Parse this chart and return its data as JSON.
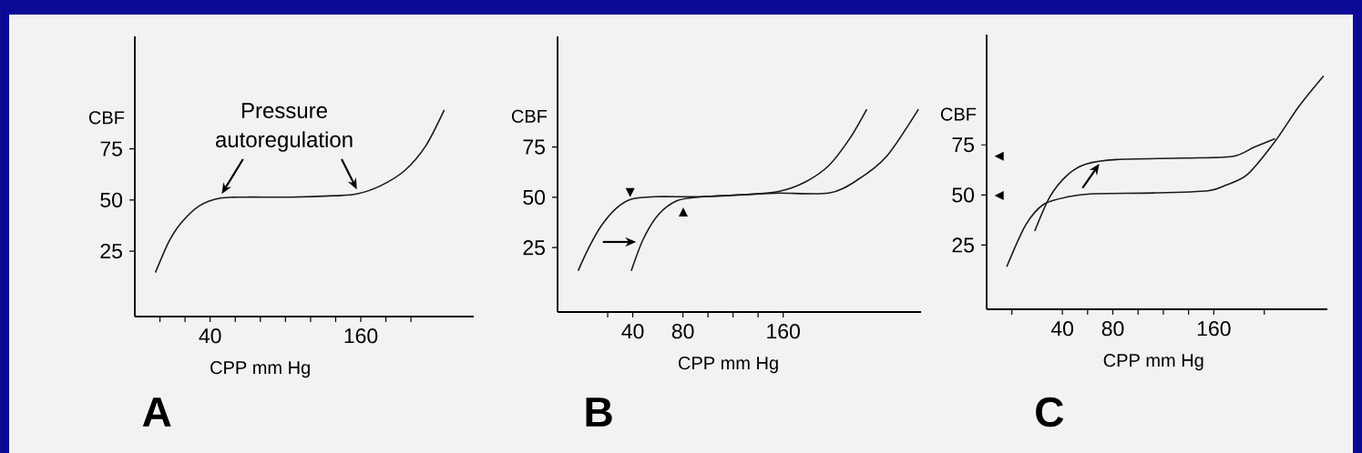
{
  "chart_data": [
    {
      "type": "line",
      "title": "A",
      "xlabel": "CPP mm Hg",
      "ylabel": "CBF",
      "annotations": [
        "Pressure autoregulation"
      ],
      "xlim": [
        -20,
        250
      ],
      "ylim": [
        -7,
        130
      ],
      "xticks": [
        {
          "value": 0,
          "label": null
        },
        {
          "value": 20,
          "label": null
        },
        40,
        {
          "value": 60,
          "label": null
        },
        {
          "value": 80,
          "label": null
        },
        {
          "value": 100,
          "label": null
        },
        {
          "value": 120,
          "label": null
        },
        {
          "value": 140,
          "label": null
        },
        160,
        {
          "value": 180,
          "label": null
        },
        {
          "value": 200,
          "label": null
        }
      ],
      "yticks": [
        25,
        50,
        75
      ],
      "series": [
        {
          "color": "#1a1a1a",
          "x": [
            -3.6,
            7.2,
            16.9,
            31.3,
            48.2,
            67.5,
            103.6,
            139.8,
            156.6,
            175.9,
            195.2,
            212,
            226.5
          ],
          "values": [
            14.5,
            29.7,
            38.8,
            47.1,
            50.9,
            51.4,
            51.4,
            52.1,
            52.9,
            57,
            64.5,
            76.7,
            94
          ]
        }
      ]
    },
    {
      "type": "line",
      "title": "B",
      "xlabel": "CPP mm Hg",
      "ylabel": "CBF",
      "xlim": [
        -20,
        270
      ],
      "ylim": [
        -7,
        130
      ],
      "xticks": [
        {
          "value": 20,
          "label": null
        },
        40,
        80,
        {
          "value": 100,
          "label": null
        },
        {
          "value": 120,
          "label": null
        },
        {
          "value": 140,
          "label": null
        },
        160
      ],
      "yticks": [
        25,
        50,
        75
      ],
      "series": [
        {
          "color": "#1a1a1a",
          "x": [
            -3.6,
            4.9,
            14.5,
            26.7,
            38.8,
            58.2,
            94.5,
            131,
            156.4,
            177,
            196.4,
            213.3,
            226.7
          ],
          "values": [
            13.5,
            24.9,
            35.5,
            44.5,
            49.1,
            50.3,
            50.3,
            51.4,
            52.9,
            57.4,
            65.8,
            79.4,
            93.8
          ]
        },
        {
          "color": "#1a1a1a",
          "x": [
            38.8,
            48.5,
            60.6,
            75.1,
            92.1,
            131,
            156.4,
            196.4,
            218.2,
            242.4,
            267.9
          ],
          "values": [
            13.5,
            29.4,
            41.5,
            48.3,
            50.1,
            51.4,
            52.1,
            52.1,
            58.2,
            70.3,
            93.8
          ]
        }
      ]
    },
    {
      "type": "line",
      "title": "C",
      "xlabel": "CPP mm Hg",
      "ylabel": "CBF",
      "xlim": [
        -20,
        250
      ],
      "ylim": [
        -7,
        130
      ],
      "xticks": [
        {
          "value": 0,
          "label": null
        },
        40,
        {
          "value": 60,
          "label": null
        },
        80,
        {
          "value": 100,
          "label": null
        },
        {
          "value": 120,
          "label": null
        },
        {
          "value": 140,
          "label": null
        },
        160,
        {
          "value": 200,
          "label": null
        }
      ],
      "yticks": [
        25,
        50,
        75
      ],
      "series": [
        {
          "color": "#1a1a1a",
          "x": [
            -4.1,
            10.9,
            25.3,
            44.6,
            63.9,
            112.1,
            155.5,
            170,
            186.8,
            208.5,
            227.8,
            247
          ],
          "values": [
            14.2,
            35,
            45.4,
            49.1,
            50.6,
            51,
            52.1,
            55,
            60.3,
            76.7,
            94.5,
            109.4
          ]
        },
        {
          "color": "#1a1a1a",
          "x": [
            18.1,
            30.1,
            44.6,
            59,
            83.2,
            136.2,
            174.7,
            191.6,
            208.5
          ],
          "values": [
            32,
            49.1,
            60.3,
            65.5,
            67.7,
            68.4,
            69.2,
            73.7,
            78.1
          ]
        }
      ]
    }
  ]
}
